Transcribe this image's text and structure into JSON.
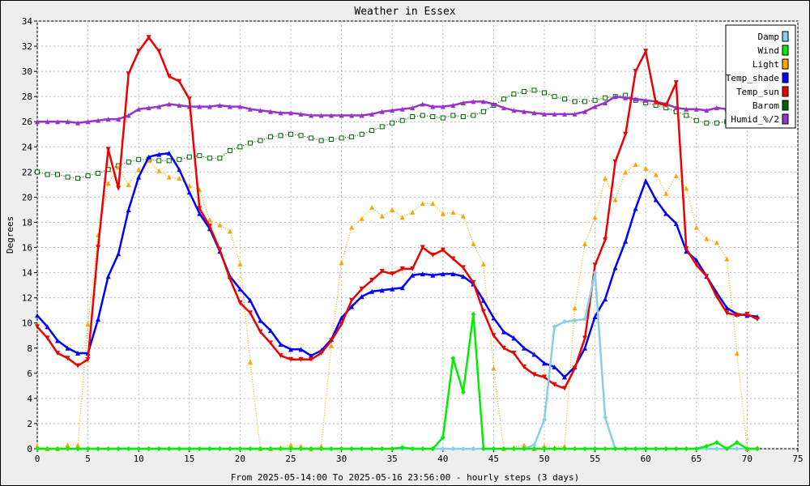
{
  "chart_data": {
    "type": "line",
    "title": "Weather in Essex",
    "xlabel": "From 2025-05-14:00 To 2025-05-16 23:56:00 - hourly steps (3 days)",
    "ylabel": "Degrees",
    "xlim": [
      0,
      75
    ],
    "ylim": [
      0,
      34
    ],
    "xticks": [
      0,
      5,
      10,
      15,
      20,
      25,
      30,
      35,
      40,
      45,
      50,
      55,
      60,
      65,
      70,
      75
    ],
    "yticks": [
      0,
      2,
      4,
      6,
      8,
      10,
      12,
      14,
      16,
      18,
      20,
      22,
      24,
      26,
      28,
      30,
      32,
      34
    ],
    "grid": true,
    "legend_position": "top-right",
    "series": [
      {
        "name": "Damp",
        "color": "#87ceeb",
        "style": "solid",
        "marker": "diamond",
        "values": [
          0,
          0,
          0,
          0,
          0,
          0,
          0,
          0,
          0,
          0,
          0,
          0,
          0,
          0,
          0,
          0,
          0,
          0,
          0,
          0,
          0,
          0,
          0,
          0,
          0,
          0,
          0,
          0,
          0,
          0,
          0,
          0,
          0,
          0,
          0,
          0,
          0,
          0,
          0,
          0,
          0,
          0,
          0,
          0,
          0,
          0,
          0,
          0,
          0,
          0.3,
          2.3,
          9.7,
          10.1,
          10.2,
          10.3,
          14.0,
          2.5,
          0,
          0,
          0,
          0,
          0,
          0,
          0,
          0,
          0,
          0,
          0,
          0,
          0,
          0,
          0
        ]
      },
      {
        "name": "Wind",
        "color": "#00ee00",
        "style": "solid",
        "marker": "diamond",
        "values": [
          0,
          0,
          0,
          0,
          0,
          0,
          0,
          0,
          0,
          0,
          0,
          0,
          0,
          0,
          0,
          0,
          0,
          0,
          0,
          0,
          0,
          0,
          0,
          0,
          0,
          0,
          0,
          0,
          0,
          0,
          0,
          0,
          0,
          0,
          0,
          0,
          0.1,
          0,
          0,
          0,
          0.9,
          7.2,
          4.5,
          10.7,
          0,
          0,
          0,
          0,
          0,
          0,
          0,
          0,
          0,
          0,
          0,
          0,
          0,
          0,
          0,
          0,
          0,
          0,
          0,
          0,
          0,
          0,
          0.2,
          0.5,
          0,
          0.5,
          0,
          0
        ]
      },
      {
        "name": "Light",
        "color": "#ffa500",
        "style": "dotted",
        "marker": "triangle",
        "values": [
          0.2,
          0,
          0,
          0.3,
          0.3,
          9.9,
          17.0,
          21.1,
          22.4,
          21.0,
          22.2,
          22.9,
          22.1,
          21.6,
          21.5,
          20.9,
          20.6,
          18.2,
          17.8,
          17.3,
          14.7,
          6.9,
          0,
          0,
          0.1,
          0.3,
          0.2,
          0,
          0.2,
          8.2,
          14.8,
          17.6,
          18.3,
          19.2,
          18.5,
          19.0,
          18.4,
          18.8,
          19.5,
          19.5,
          18.7,
          18.8,
          18.5,
          16.3,
          14.7,
          6.4,
          0,
          0.1,
          0.3,
          0,
          0.2,
          0.1,
          0.2,
          11.2,
          16.3,
          18.4,
          21.5,
          19.8,
          22.0,
          22.6,
          22.3,
          21.8,
          20.3,
          21.7,
          20.7,
          17.6,
          16.7,
          16.4,
          15.1,
          7.6,
          0,
          0.1
        ]
      },
      {
        "name": "Temp_shade",
        "color": "#0000ff",
        "style": "solid",
        "marker": "triangle",
        "values": [
          10.6,
          9.7,
          8.6,
          8.0,
          7.6,
          7.6,
          10.3,
          13.7,
          15.5,
          19.0,
          21.6,
          23.2,
          23.4,
          23.5,
          22.2,
          20.4,
          18.7,
          17.5,
          15.7,
          13.7,
          12.7,
          11.8,
          10.2,
          9.4,
          8.3,
          7.9,
          7.9,
          7.4,
          7.8,
          8.7,
          10.4,
          11.3,
          12.1,
          12.5,
          12.6,
          12.7,
          12.8,
          13.8,
          13.9,
          13.8,
          13.9,
          13.9,
          13.7,
          13.1,
          11.8,
          10.4,
          9.3,
          8.8,
          8.0,
          7.5,
          6.8,
          6.5,
          5.7,
          6.5,
          8.0,
          10.5,
          11.9,
          14.4,
          16.5,
          19.1,
          21.3,
          19.8,
          18.7,
          17.9,
          15.7,
          15.0,
          13.7,
          12.4,
          11.2,
          10.7,
          10.6,
          10.5
        ]
      },
      {
        "name": "Temp_sun",
        "color": "#ee0000",
        "style": "solid",
        "marker": "triangle-down",
        "values": [
          9.7,
          8.8,
          7.6,
          7.2,
          6.6,
          7.1,
          16.0,
          23.8,
          20.7,
          29.8,
          31.6,
          32.7,
          31.6,
          29.6,
          29.2,
          27.8,
          19.1,
          17.7,
          15.8,
          13.5,
          11.6,
          10.8,
          9.3,
          8.4,
          7.4,
          7.1,
          7.1,
          7.1,
          7.6,
          8.6,
          9.9,
          11.8,
          12.7,
          13.4,
          14.1,
          13.9,
          14.3,
          14.3,
          16.0,
          15.4,
          15.8,
          15.1,
          14.4,
          13.2,
          10.9,
          9.0,
          8.0,
          7.6,
          6.5,
          5.9,
          5.7,
          5.1,
          4.8,
          6.4,
          8.8,
          14.6,
          16.6,
          22.8,
          25.0,
          30.0,
          31.6,
          27.5,
          27.3,
          29.1,
          15.9,
          14.6,
          13.7,
          12.1,
          10.8,
          10.6,
          10.7,
          10.3
        ]
      },
      {
        "name": "Barom",
        "color": "#006400",
        "style": "dotted",
        "marker": "square",
        "values": [
          22.0,
          21.8,
          21.8,
          21.6,
          21.5,
          21.7,
          21.9,
          22.2,
          22.5,
          22.8,
          23.0,
          23.0,
          22.9,
          22.9,
          23.0,
          23.2,
          23.3,
          23.1,
          23.1,
          23.7,
          24.0,
          24.3,
          24.5,
          24.8,
          24.9,
          25.0,
          24.9,
          24.7,
          24.5,
          24.6,
          24.7,
          24.8,
          25.0,
          25.3,
          25.6,
          25.9,
          26.1,
          26.4,
          26.5,
          26.4,
          26.3,
          26.5,
          26.4,
          26.5,
          26.8,
          27.3,
          27.8,
          28.2,
          28.4,
          28.5,
          28.3,
          28.0,
          27.8,
          27.6,
          27.6,
          27.7,
          27.9,
          28.0,
          28.1,
          27.7,
          27.5,
          27.3,
          27.1,
          26.8,
          26.5,
          26.1,
          25.9,
          25.9,
          26.0,
          26.0,
          26.0,
          26.0
        ]
      },
      {
        "name": "Humid_%/2",
        "color": "#9932cc",
        "style": "solid",
        "marker": "triangle",
        "values": [
          26.0,
          26.0,
          26.0,
          26.0,
          25.9,
          26.0,
          26.1,
          26.2,
          26.2,
          26.5,
          27.0,
          27.1,
          27.2,
          27.4,
          27.3,
          27.2,
          27.2,
          27.2,
          27.3,
          27.2,
          27.2,
          27.0,
          26.9,
          26.8,
          26.7,
          26.7,
          26.6,
          26.5,
          26.5,
          26.5,
          26.5,
          26.5,
          26.5,
          26.6,
          26.8,
          26.9,
          27.0,
          27.1,
          27.4,
          27.2,
          27.2,
          27.3,
          27.5,
          27.6,
          27.6,
          27.4,
          27.1,
          26.9,
          26.8,
          26.7,
          26.6,
          26.6,
          26.6,
          26.6,
          26.8,
          27.2,
          27.5,
          28.0,
          27.9,
          27.8,
          27.7,
          27.6,
          27.4,
          27.1,
          27.0,
          27.0,
          26.9,
          27.1,
          27.0,
          27.1,
          27.1,
          27.1
        ]
      }
    ]
  }
}
